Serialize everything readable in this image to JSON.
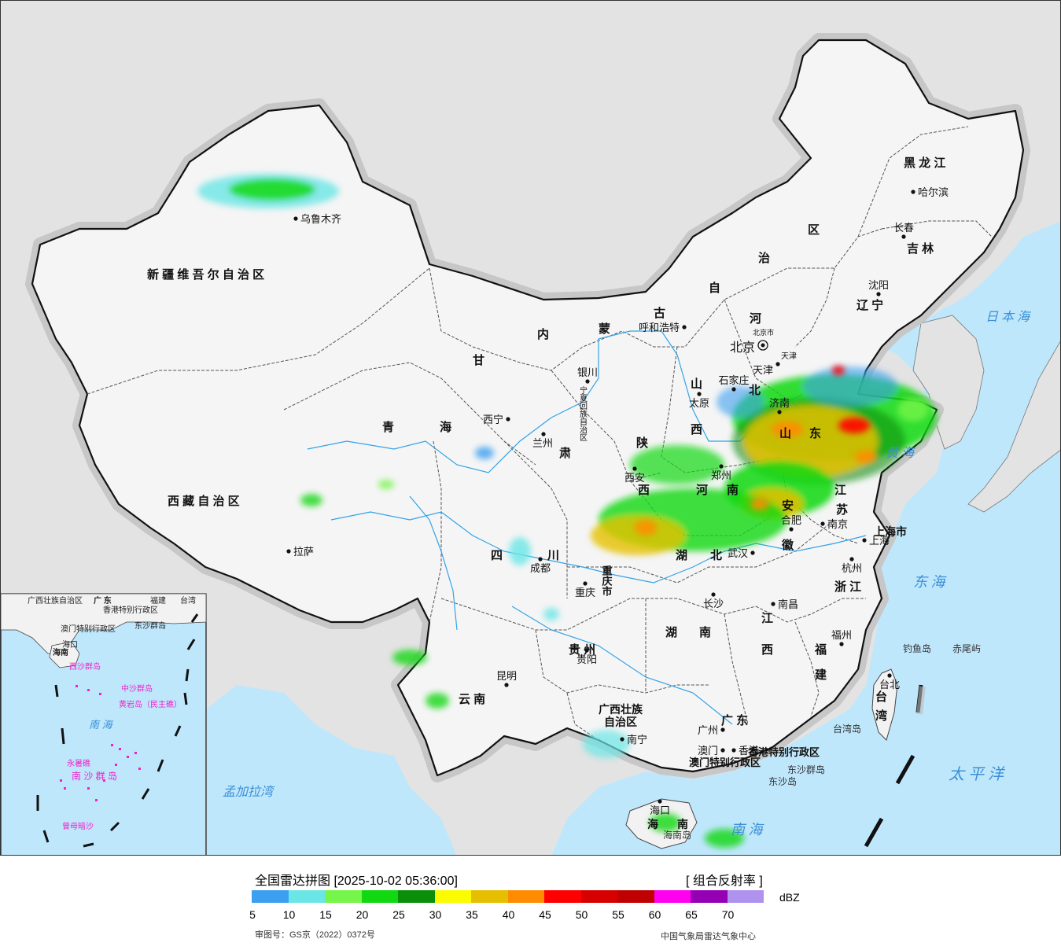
{
  "title": "全国雷达拼图 [2025-10-02 05:36:00]",
  "product": "[ 组合反射率 ]",
  "unit": "dBZ",
  "review_number": "审图号：GS京（2022）0372号",
  "credit": "中国气象局雷达气象中心",
  "scale": {
    "colors": [
      "#3c9ff0",
      "#6be6e6",
      "#76f54a",
      "#12d812",
      "#0b8f0b",
      "#fcfc00",
      "#e6c000",
      "#ff8c00",
      "#ff0000",
      "#d60000",
      "#c00000",
      "#ff00f0",
      "#9600b4",
      "#ae92ee"
    ],
    "ticks": [
      "5",
      "10",
      "15",
      "20",
      "25",
      "30",
      "35",
      "40",
      "45",
      "50",
      "55",
      "60",
      "65",
      "70"
    ]
  },
  "regions": {
    "xinjiang": "新 疆 维 吾 尔 自 治 区",
    "tibet": "西 藏 自 治 区",
    "qinghai_1": "青",
    "qinghai_2": "海",
    "gansu_1": "甘",
    "gansu_2": "肃",
    "neimenggu_1": "内",
    "neimenggu_2": "蒙",
    "neimenggu_3": "古",
    "neimenggu_4": "自",
    "neimenggu_5": "治",
    "neimenggu_6": "区",
    "heilongjiang": "黑 龙 江",
    "jilin": "吉 林",
    "liaoning": "辽 宁",
    "hebei_1": "河",
    "hebei_2": "北",
    "shanxi_1": "山",
    "shanxi_2": "西",
    "shaanxi_1": "陕",
    "shaanxi_2": "西",
    "ningxia": "宁夏回族自治区",
    "shandong_1": "山",
    "shandong_2": "东",
    "henan_1": "河",
    "henan_2": "南",
    "jiangsu_1": "江",
    "jiangsu_2": "苏",
    "anhui_1": "安",
    "anhui_2": "徽",
    "hubei_1": "湖",
    "hubei_2": "北",
    "sichuan_1": "四",
    "sichuan_2": "川",
    "chongqing": "重庆市",
    "shanghai": "上海市",
    "zhejiang": "浙 江",
    "jiangxi_1": "江",
    "jiangxi_2": "西",
    "hunan_1": "湖",
    "hunan_2": "南",
    "guizhou": "贵 州",
    "yunnan": "云 南",
    "guangxi_1": "广西壮族",
    "guangxi_2": "自治区",
    "guangdong": "广 东",
    "fujian_1": "福",
    "fujian_2": "建",
    "taiwan_1": "台",
    "taiwan_2": "湾",
    "hainan_1": "海",
    "hainan_2": "南",
    "hongkong_sar": "香港特别行政区",
    "macau_sar": "澳门特别行政区",
    "beijing_city": "北京市",
    "tianjin_city": "天津"
  },
  "cities": [
    {
      "key": "urumqi",
      "name": "乌鲁木齐"
    },
    {
      "key": "lhasa",
      "name": "拉萨"
    },
    {
      "key": "xining",
      "name": "西宁"
    },
    {
      "key": "lanzhou",
      "name": "兰州"
    },
    {
      "key": "yinchuan",
      "name": "银川"
    },
    {
      "key": "hohhot",
      "name": "呼和浩特"
    },
    {
      "key": "beijing",
      "name": "北京"
    },
    {
      "key": "tianjin",
      "name": "天津"
    },
    {
      "key": "shijiazhuang",
      "name": "石家庄"
    },
    {
      "key": "taiyuan",
      "name": "太原"
    },
    {
      "key": "jinan",
      "name": "济南"
    },
    {
      "key": "zhengzhou",
      "name": "郑州"
    },
    {
      "key": "xian",
      "name": "西安"
    },
    {
      "key": "harbin",
      "name": "哈尔滨"
    },
    {
      "key": "changchun",
      "name": "长春"
    },
    {
      "key": "shenyang",
      "name": "沈阳"
    },
    {
      "key": "hefei",
      "name": "合肥"
    },
    {
      "key": "nanjing",
      "name": "南京"
    },
    {
      "key": "shanghai",
      "name": "上海"
    },
    {
      "key": "hangzhou",
      "name": "杭州"
    },
    {
      "key": "wuhan",
      "name": "武汉"
    },
    {
      "key": "chengdu",
      "name": "成都"
    },
    {
      "key": "chongqing",
      "name": "重庆"
    },
    {
      "key": "changsha",
      "name": "长沙"
    },
    {
      "key": "nanchang",
      "name": "南昌"
    },
    {
      "key": "fuzhou",
      "name": "福州"
    },
    {
      "key": "taipei",
      "name": "台北"
    },
    {
      "key": "guiyang",
      "name": "贵阳"
    },
    {
      "key": "kunming",
      "name": "昆明"
    },
    {
      "key": "nanning",
      "name": "南宁"
    },
    {
      "key": "guangzhou",
      "name": "广州"
    },
    {
      "key": "hongkong",
      "name": "香港"
    },
    {
      "key": "macau",
      "name": "澳门"
    },
    {
      "key": "haikou",
      "name": "海口"
    }
  ],
  "seas": {
    "japan_sea": "日 本 海",
    "yellow_sea": "黄 海",
    "east_sea": "东 海",
    "pacific": "太 平 洋",
    "south_sea": "南 海",
    "bengal": "孟加拉湾"
  },
  "islands": {
    "diaoyu": "钓鱼岛",
    "chiwei": "赤尾屿",
    "taiwan_island": "台湾岛",
    "dongsha_islands": "东沙群岛",
    "dongsha_island": "东沙岛",
    "hainan_island": "海南岛"
  },
  "inset": {
    "guangdong": "广 东",
    "guangxi": "广西壮族自治区",
    "fujian": "福建",
    "taiwan": "台湾",
    "hongkong": "香港特别行政区",
    "macau": "澳门特别行政区",
    "hainan": "海南",
    "dongsha": "东沙群岛",
    "xisha": "西沙群岛",
    "zhongsha": "中沙群岛",
    "huangyan": "黄岩岛（民主礁）",
    "nansha": "南 沙 群 岛",
    "yongshu": "永暑礁",
    "zengmu": "曾母暗沙",
    "south_sea": "南 海",
    "haikou": "海口"
  }
}
